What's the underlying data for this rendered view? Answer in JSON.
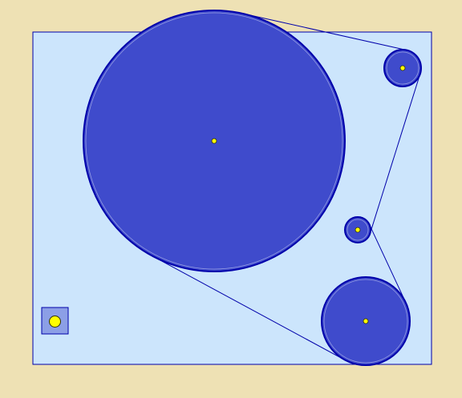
{
  "colors": {
    "background": "#eee1b4",
    "panel_fill": "#cce5fc",
    "panel_stroke": "#0000aa",
    "circle_fill": "#3f4bcc",
    "circle_stroke": "#0000aa",
    "belt_stroke": "#0000aa",
    "pin_fill": "#ffff00",
    "pin_stroke": "#333300",
    "button_fill": "#8c9fe6",
    "button_stroke": "#0000aa"
  },
  "pulleys": [
    {
      "name": "pulley-large"
    },
    {
      "name": "pulley-top-right"
    },
    {
      "name": "pulley-middle-small"
    },
    {
      "name": "pulley-bottom"
    }
  ],
  "tool_button": {
    "icon": "yellow-dot-icon"
  }
}
